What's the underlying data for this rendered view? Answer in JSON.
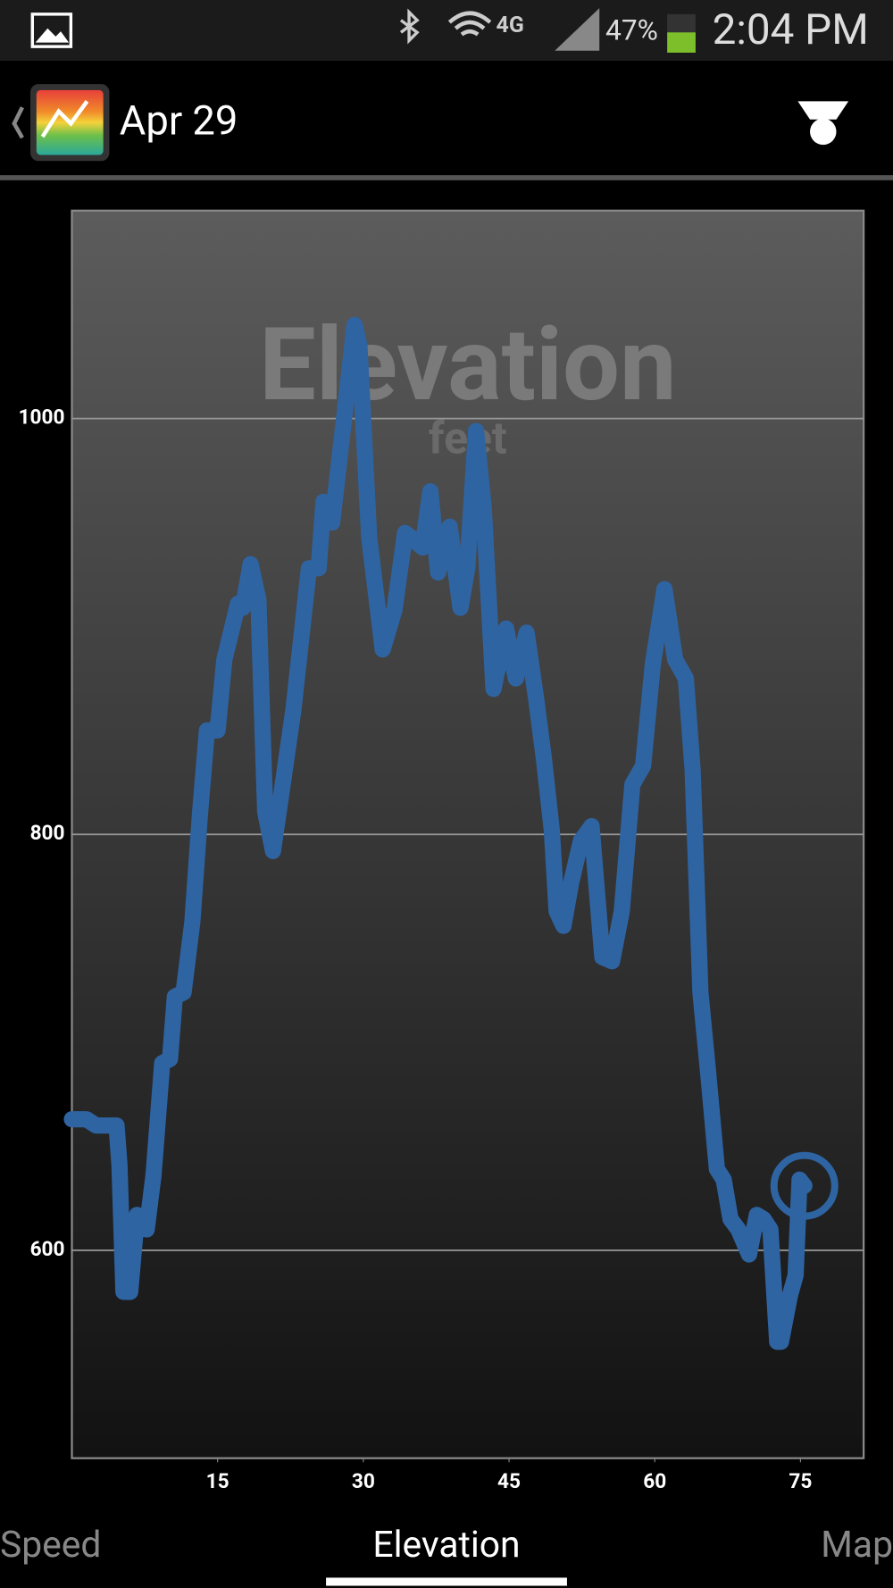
{
  "status_bar": {
    "battery": "47%",
    "time": "2:04 PM"
  },
  "action_bar": {
    "title": "Apr 29"
  },
  "tabs": [
    "Speed",
    "Elevation",
    "Map"
  ],
  "chart_data": {
    "type": "line",
    "title": "Elevation",
    "subtitle": "feet",
    "color": "#2f64a3",
    "x": [
      0,
      1.5,
      2.5,
      4.6,
      4.9,
      5.3,
      6,
      6.7,
      7.7,
      8.4,
      9.3,
      10.1,
      10.6,
      11.5,
      12.4,
      13.2,
      13.9,
      15,
      15.7,
      17.1,
      17.6,
      18.4,
      19.2,
      19.9,
      20.7,
      21.6,
      22.8,
      24.4,
      25.4,
      25.9,
      26.8,
      27.8,
      29.1,
      29.6,
      30.6,
      32,
      33.2,
      34.3,
      35.1,
      36.1,
      36.9,
      37.7,
      38.9,
      40,
      40.7,
      41.6,
      42.4,
      43.4,
      44.7,
      45.7,
      46.8,
      47.8,
      48.6,
      49.4,
      49.9,
      50.6,
      51.4,
      52.4,
      53.5,
      54.6,
      55.6,
      56.6,
      57.7,
      58.8,
      59.8,
      61,
      62.1,
      63.2,
      63.9,
      64.7,
      65.5,
      66.4,
      67.1,
      67.8,
      68.6,
      69.7,
      70.5,
      71.2,
      71.9,
      72.6,
      73,
      73.9,
      74.5,
      74.9,
      75.4
    ],
    "values": [
      663,
      663,
      660,
      660,
      641,
      580,
      580,
      617,
      610,
      636,
      690,
      692,
      722,
      724,
      758,
      811,
      850,
      850,
      884,
      911,
      909,
      930,
      913,
      811,
      792,
      821,
      860,
      928,
      928,
      960,
      950,
      991,
      1045,
      1035,
      943,
      889,
      908,
      945,
      942,
      938,
      965,
      926,
      948,
      909,
      928,
      994,
      957,
      870,
      899,
      875,
      897,
      865,
      836,
      802,
      763,
      756,
      777,
      797,
      804,
      741,
      739,
      763,
      824,
      833,
      882,
      918,
      884,
      875,
      831,
      724,
      685,
      639,
      634,
      615,
      610,
      598,
      617,
      615,
      610,
      556,
      556,
      578,
      588,
      634,
      631
    ],
    "xlim": [
      0,
      81.5
    ],
    "ylim": [
      500,
      1100
    ],
    "xticks": [
      15,
      30,
      45,
      60,
      75
    ],
    "yticks": [
      600,
      800,
      1000
    ],
    "grid": true
  }
}
